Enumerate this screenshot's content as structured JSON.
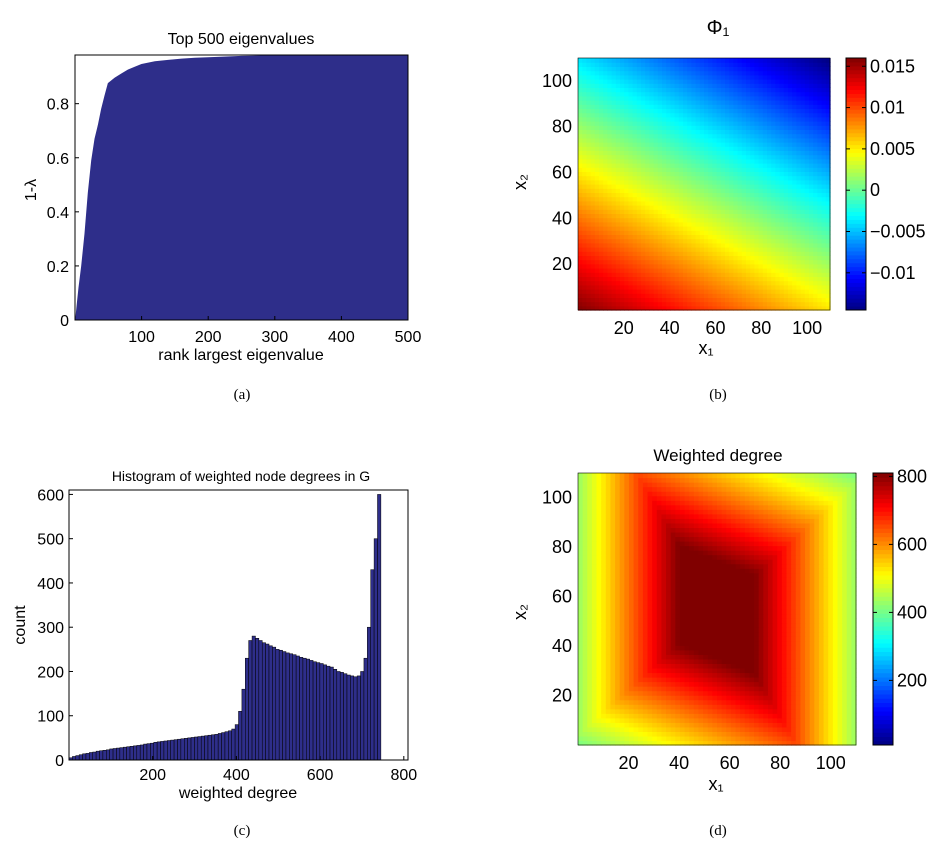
{
  "figure": {
    "captions": [
      "(a)",
      "(b)",
      "(c)",
      "(d)"
    ]
  },
  "chart_data": [
    {
      "type": "area",
      "title": "Top 500 eigenvalues",
      "xlabel": "rank largest eigenvalue",
      "ylabel": "1-λ",
      "xlim": [
        0,
        500
      ],
      "ylim": [
        0,
        0.98
      ],
      "xticks": [
        100,
        200,
        300,
        400,
        500
      ],
      "yticks": [
        0,
        0.2,
        0.4,
        0.6,
        0.8
      ],
      "fill_color": "#2e2e8a",
      "x": [
        1,
        3,
        6,
        10,
        15,
        20,
        25,
        30,
        35,
        40,
        45,
        50,
        55,
        60,
        70,
        80,
        90,
        100,
        120,
        140,
        160,
        180,
        200,
        250,
        300,
        350,
        400,
        450,
        500
      ],
      "y": [
        0.0,
        0.05,
        0.12,
        0.2,
        0.32,
        0.47,
        0.59,
        0.67,
        0.72,
        0.78,
        0.83,
        0.875,
        0.885,
        0.895,
        0.91,
        0.925,
        0.935,
        0.945,
        0.955,
        0.96,
        0.965,
        0.968,
        0.97,
        0.975,
        0.977,
        0.978,
        0.979,
        0.98,
        0.98
      ],
      "grid": false
    },
    {
      "type": "heatmap",
      "title": "Φ₁",
      "xlabel": "x₁",
      "ylabel": "x₂",
      "xlim": [
        0,
        110
      ],
      "ylim": [
        0,
        110
      ],
      "xticks": [
        20,
        40,
        60,
        80,
        100
      ],
      "yticks": [
        20,
        40,
        60,
        80,
        100
      ],
      "colorbar": {
        "min": -0.0145,
        "max": 0.016,
        "ticks": [
          -0.01,
          -0.005,
          0,
          0.005,
          0.01,
          0.015
        ],
        "tick_labels": [
          "−0.01",
          "−0.005",
          "0",
          "0.005",
          "0.01",
          "0.015"
        ]
      },
      "field": {
        "form": "linear",
        "value_at_origin": 0.016,
        "value_at_top_right": -0.0145,
        "x_weight": 0.35,
        "y_weight": 0.65
      },
      "colormap": "jet"
    },
    {
      "type": "bar",
      "title": "Histogram of weighted node degrees in G",
      "xlabel": "weighted degree",
      "ylabel": "count",
      "xlim": [
        0,
        810
      ],
      "ylim": [
        0,
        610
      ],
      "xticks": [
        200,
        400,
        600,
        800
      ],
      "yticks": [
        0,
        100,
        200,
        300,
        400,
        500,
        600
      ],
      "bar_color": "#2e2e8a",
      "bin_width": 8.1,
      "values": [
        5,
        8,
        10,
        12,
        14,
        15,
        17,
        18,
        20,
        21,
        22,
        23,
        25,
        26,
        27,
        28,
        29,
        30,
        31,
        32,
        33,
        34,
        36,
        37,
        38,
        40,
        41,
        42,
        43,
        44,
        45,
        46,
        47,
        48,
        49,
        50,
        51,
        52,
        53,
        54,
        55,
        56,
        57,
        58,
        60,
        62,
        64,
        66,
        70,
        80,
        110,
        160,
        230,
        270,
        280,
        275,
        270,
        265,
        262,
        258,
        255,
        250,
        248,
        245,
        242,
        240,
        238,
        235,
        232,
        230,
        228,
        225,
        222,
        220,
        218,
        215,
        212,
        210,
        205,
        200,
        198,
        195,
        192,
        190,
        188,
        190,
        200,
        230,
        300,
        430,
        500,
        600
      ]
    },
    {
      "type": "heatmap",
      "title": "Weighted degree",
      "xlabel": "x₁",
      "ylabel": "x₂",
      "xlim": [
        0,
        110
      ],
      "ylim": [
        0,
        110
      ],
      "xticks": [
        20,
        40,
        60,
        80,
        100
      ],
      "yticks": [
        20,
        40,
        60,
        80,
        100
      ],
      "colorbar": {
        "min": 10,
        "max": 810,
        "ticks": [
          200,
          400,
          600,
          800
        ],
        "tick_labels": [
          "200",
          "400",
          "600",
          "800"
        ]
      },
      "field": {
        "form": "parallelogram",
        "peak_value": 810,
        "edge_value": 10,
        "center": [
          55,
          55
        ],
        "plateau_half_width": 15,
        "decay_per_unit": 9.5
      },
      "colormap": "jet"
    }
  ]
}
